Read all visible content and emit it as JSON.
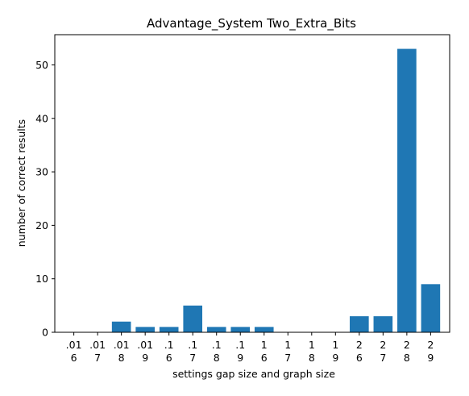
{
  "chart_data": {
    "type": "bar",
    "title": "Advantage_System Two_Extra_Bits",
    "xlabel": "settings gap size and graph size",
    "ylabel": "number of correct results",
    "categories": [
      {
        "gap": ".01",
        "size": "6"
      },
      {
        "gap": ".01",
        "size": "7"
      },
      {
        "gap": ".01",
        "size": "8"
      },
      {
        "gap": ".01",
        "size": "9"
      },
      {
        "gap": ".1",
        "size": "6"
      },
      {
        "gap": ".1",
        "size": "7"
      },
      {
        "gap": ".1",
        "size": "8"
      },
      {
        "gap": ".1",
        "size": "9"
      },
      {
        "gap": "1",
        "size": "6"
      },
      {
        "gap": "1",
        "size": "7"
      },
      {
        "gap": "1",
        "size": "8"
      },
      {
        "gap": "1",
        "size": "9"
      },
      {
        "gap": "2",
        "size": "6"
      },
      {
        "gap": "2",
        "size": "7"
      },
      {
        "gap": "2",
        "size": "8"
      },
      {
        "gap": "2",
        "size": "9"
      }
    ],
    "values": [
      0,
      0,
      2,
      1,
      1,
      5,
      1,
      1,
      1,
      0,
      0,
      0,
      3,
      3,
      53,
      9
    ],
    "ylim": [
      0,
      55.65
    ],
    "yticks": [
      0,
      10,
      20,
      30,
      40,
      50
    ],
    "bar_color": "#1f77b4",
    "grid": false,
    "legend": "none"
  }
}
